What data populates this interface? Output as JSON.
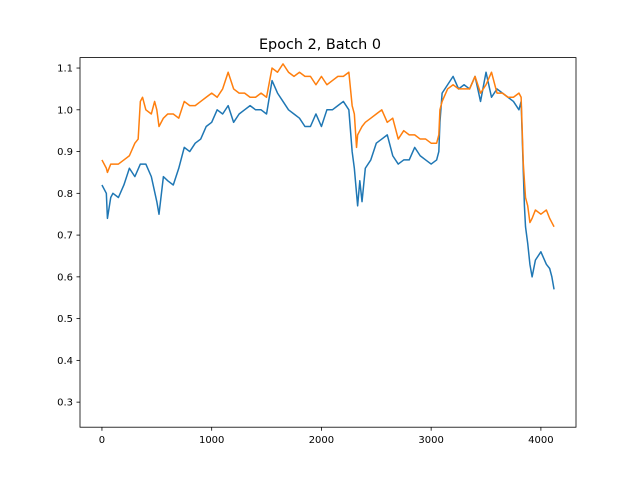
{
  "chart_data": {
    "type": "line",
    "title": "Epoch 2, Batch 0",
    "xlabel": "",
    "ylabel": "",
    "xlim": [
      -200,
      4320
    ],
    "ylim": [
      0.24,
      1.125
    ],
    "x_ticks": [
      0,
      1000,
      2000,
      3000,
      4000
    ],
    "x_tick_labels": [
      "0",
      "1000",
      "2000",
      "3000",
      "4000"
    ],
    "y_ticks": [
      0.3,
      0.4,
      0.5,
      0.6,
      0.7,
      0.8,
      0.9,
      1.0,
      1.1
    ],
    "y_tick_labels": [
      "0.3",
      "0.4",
      "0.5",
      "0.6",
      "0.7",
      "0.8",
      "0.9",
      "1.0",
      "1.1"
    ],
    "grid": false,
    "legend": false,
    "series": [
      {
        "color": "#1f77b4",
        "x": [
          0,
          40,
          50,
          80,
          100,
          150,
          200,
          250,
          300,
          350,
          400,
          450,
          500,
          520,
          560,
          600,
          650,
          700,
          750,
          800,
          850,
          900,
          950,
          1000,
          1050,
          1100,
          1150,
          1200,
          1250,
          1300,
          1350,
          1400,
          1450,
          1500,
          1550,
          1600,
          1650,
          1700,
          1750,
          1800,
          1850,
          1900,
          1950,
          2000,
          2050,
          2100,
          2150,
          2200,
          2250,
          2280,
          2300,
          2320,
          2330,
          2350,
          2370,
          2400,
          2450,
          2500,
          2550,
          2600,
          2650,
          2700,
          2750,
          2800,
          2850,
          2900,
          2950,
          3000,
          3050,
          3070,
          3080,
          3100,
          3150,
          3200,
          3250,
          3300,
          3350,
          3400,
          3450,
          3500,
          3550,
          3600,
          3650,
          3700,
          3750,
          3800,
          3820,
          3840,
          3850,
          3860,
          3880,
          3900,
          3920,
          3950,
          4000,
          4050,
          4080,
          4100,
          4120
        ],
        "y": [
          0.82,
          0.8,
          0.74,
          0.79,
          0.8,
          0.79,
          0.82,
          0.86,
          0.84,
          0.87,
          0.87,
          0.84,
          0.78,
          0.75,
          0.84,
          0.83,
          0.82,
          0.86,
          0.91,
          0.9,
          0.92,
          0.93,
          0.96,
          0.97,
          1.0,
          0.99,
          1.01,
          0.97,
          0.99,
          1.0,
          1.01,
          1.0,
          1.0,
          0.99,
          1.07,
          1.04,
          1.02,
          1.0,
          0.99,
          0.98,
          0.96,
          0.96,
          0.99,
          0.96,
          1.0,
          1.0,
          1.01,
          1.02,
          1.0,
          0.9,
          0.86,
          0.8,
          0.77,
          0.83,
          0.78,
          0.86,
          0.88,
          0.92,
          0.93,
          0.94,
          0.89,
          0.87,
          0.88,
          0.88,
          0.91,
          0.89,
          0.88,
          0.87,
          0.88,
          0.9,
          0.97,
          1.04,
          1.06,
          1.08,
          1.05,
          1.06,
          1.05,
          1.08,
          1.02,
          1.09,
          1.03,
          1.05,
          1.04,
          1.03,
          1.02,
          1.0,
          1.02,
          0.85,
          0.77,
          0.72,
          0.68,
          0.63,
          0.6,
          0.64,
          0.66,
          0.63,
          0.62,
          0.6,
          0.57
        ]
      },
      {
        "color": "#ff7f0e",
        "x": [
          0,
          40,
          50,
          80,
          100,
          150,
          200,
          250,
          300,
          330,
          350,
          370,
          400,
          450,
          480,
          500,
          520,
          560,
          600,
          650,
          700,
          750,
          800,
          850,
          900,
          950,
          1000,
          1050,
          1100,
          1150,
          1200,
          1250,
          1300,
          1350,
          1400,
          1450,
          1500,
          1550,
          1600,
          1650,
          1700,
          1750,
          1800,
          1850,
          1900,
          1950,
          2000,
          2050,
          2100,
          2150,
          2200,
          2250,
          2280,
          2300,
          2320,
          2330,
          2350,
          2370,
          2400,
          2450,
          2500,
          2550,
          2600,
          2650,
          2700,
          2750,
          2800,
          2850,
          2900,
          2950,
          3000,
          3050,
          3070,
          3080,
          3100,
          3150,
          3200,
          3250,
          3300,
          3350,
          3400,
          3450,
          3500,
          3550,
          3600,
          3650,
          3700,
          3750,
          3800,
          3820,
          3840,
          3850,
          3860,
          3880,
          3900,
          3920,
          3950,
          4000,
          4050,
          4080,
          4100,
          4120
        ],
        "y": [
          0.88,
          0.86,
          0.85,
          0.87,
          0.87,
          0.87,
          0.88,
          0.89,
          0.92,
          0.93,
          1.02,
          1.03,
          1.0,
          0.99,
          1.02,
          1.0,
          0.96,
          0.98,
          0.99,
          0.99,
          0.98,
          1.02,
          1.01,
          1.01,
          1.02,
          1.03,
          1.04,
          1.03,
          1.05,
          1.09,
          1.05,
          1.04,
          1.04,
          1.03,
          1.03,
          1.04,
          1.03,
          1.1,
          1.09,
          1.11,
          1.09,
          1.08,
          1.09,
          1.08,
          1.08,
          1.06,
          1.08,
          1.06,
          1.07,
          1.08,
          1.08,
          1.09,
          1.01,
          0.99,
          0.91,
          0.94,
          0.95,
          0.96,
          0.97,
          0.98,
          0.99,
          1.0,
          0.97,
          0.98,
          0.93,
          0.95,
          0.94,
          0.94,
          0.93,
          0.93,
          0.92,
          0.92,
          0.94,
          1.0,
          1.02,
          1.05,
          1.06,
          1.05,
          1.05,
          1.05,
          1.08,
          1.04,
          1.06,
          1.09,
          1.04,
          1.04,
          1.03,
          1.03,
          1.04,
          1.03,
          0.87,
          0.83,
          0.79,
          0.77,
          0.73,
          0.74,
          0.76,
          0.75,
          0.76,
          0.74,
          0.73,
          0.72
        ]
      }
    ]
  }
}
